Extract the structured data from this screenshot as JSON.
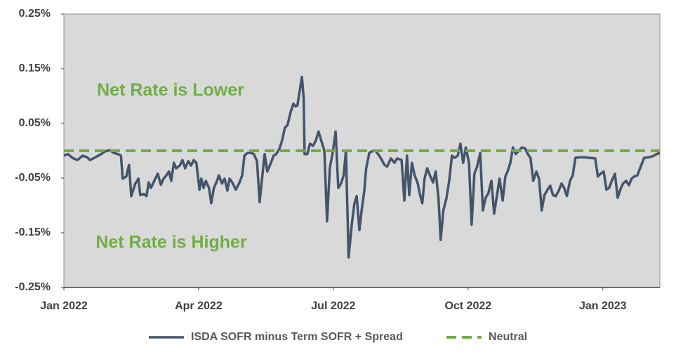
{
  "chart_data": {
    "type": "line",
    "annotations": [
      "Net Rate is Lower",
      "Net Rate is Higher"
    ],
    "xlim": [
      0,
      13.27
    ],
    "xticks": [
      {
        "value": 0,
        "label": "Jan 2022"
      },
      {
        "value": 3,
        "label": "Apr 2022"
      },
      {
        "value": 6,
        "label": "Jul 2022"
      },
      {
        "value": 9,
        "label": "Oct 2022"
      },
      {
        "value": 12,
        "label": "Jan 2023"
      }
    ],
    "ylim": [
      -0.25,
      0.25
    ],
    "yticks": [
      {
        "value": -0.25,
        "label": "-0.25%"
      },
      {
        "value": -0.15,
        "label": "-0.15%"
      },
      {
        "value": -0.05,
        "label": "-0.05%"
      },
      {
        "value": 0.05,
        "label": "0.05%"
      },
      {
        "value": 0.15,
        "label": "0.15%"
      },
      {
        "value": 0.25,
        "label": "0.25%"
      }
    ],
    "plot_background": "#d9d9d9",
    "legend": "bottom",
    "series": [
      {
        "name": "ISDA SOFR minus Term SOFR + Spread",
        "color": "#44546a",
        "style": "solid",
        "x": [
          0,
          0.09,
          0.19,
          0.3,
          0.42,
          0.52,
          0.58,
          0.7,
          0.83,
          0.92,
          1.02,
          1.11,
          1.2,
          1.27,
          1.31,
          1.39,
          1.45,
          1.5,
          1.59,
          1.66,
          1.7,
          1.78,
          1.84,
          1.89,
          1.94,
          2.02,
          2.09,
          2.16,
          2.22,
          2.28,
          2.34,
          2.39,
          2.45,
          2.5,
          2.58,
          2.64,
          2.7,
          2.77,
          2.83,
          2.89,
          2.95,
          3.02,
          3.06,
          3.11,
          3.16,
          3.23,
          3.28,
          3.34,
          3.41,
          3.45,
          3.52,
          3.58,
          3.64,
          3.69,
          3.75,
          3.83,
          3.91,
          3.97,
          4.02,
          4.09,
          4.17,
          4.23,
          4.3,
          4.36,
          4.42,
          4.47,
          4.53,
          4.61,
          4.67,
          4.73,
          4.8,
          4.86,
          4.92,
          4.98,
          5.05,
          5.11,
          5.16,
          5.2,
          5.25,
          5.3,
          5.34,
          5.36,
          5.42,
          5.48,
          5.55,
          5.61,
          5.67,
          5.73,
          5.8,
          5.86,
          5.92,
          5.98,
          6.05,
          6.11,
          6.17,
          6.23,
          6.28,
          6.34,
          6.41,
          6.47,
          6.52,
          6.58,
          6.63,
          6.69,
          6.73,
          6.8,
          6.86,
          6.94,
          7.02,
          7.08,
          7.14,
          7.2,
          7.28,
          7.36,
          7.42,
          7.52,
          7.58,
          7.64,
          7.69,
          7.75,
          7.81,
          7.88,
          7.92,
          7.98,
          8.03,
          8.09,
          8.16,
          8.22,
          8.28,
          8.34,
          8.39,
          8.45,
          8.52,
          8.58,
          8.64,
          8.7,
          8.77,
          8.83,
          8.89,
          8.95,
          9.02,
          9.08,
          9.14,
          9.2,
          9.27,
          9.33,
          9.39,
          9.45,
          9.52,
          9.58,
          9.64,
          9.7,
          9.77,
          9.83,
          9.88,
          9.94,
          10.0,
          10.06,
          10.13,
          10.2,
          10.27,
          10.33,
          10.39,
          10.45,
          10.52,
          10.58,
          10.64,
          10.7,
          10.77,
          10.83,
          10.89,
          10.95,
          11.02,
          11.08,
          11.14,
          11.2,
          11.27,
          11.33,
          11.39,
          11.48,
          11.58,
          11.7,
          11.83,
          11.89,
          11.95,
          12.02,
          12.08,
          12.14,
          12.2,
          12.27,
          12.33,
          12.39,
          12.45,
          12.52,
          12.58,
          12.64,
          12.7,
          12.77,
          12.83,
          12.92,
          13.02,
          13.11,
          13.2,
          13.27
        ],
        "values": [
          -0.009,
          -0.006,
          -0.013,
          -0.017,
          -0.009,
          -0.012,
          -0.017,
          -0.012,
          -0.006,
          -0.001,
          0.001,
          -0.004,
          -0.006,
          -0.009,
          -0.051,
          -0.047,
          -0.026,
          -0.083,
          -0.06,
          -0.051,
          -0.081,
          -0.079,
          -0.083,
          -0.058,
          -0.068,
          -0.054,
          -0.042,
          -0.062,
          -0.051,
          -0.045,
          -0.038,
          -0.055,
          -0.022,
          -0.032,
          -0.027,
          -0.017,
          -0.032,
          -0.019,
          -0.027,
          -0.017,
          -0.022,
          -0.071,
          -0.051,
          -0.068,
          -0.055,
          -0.068,
          -0.096,
          -0.068,
          -0.055,
          -0.045,
          -0.06,
          -0.051,
          -0.073,
          -0.051,
          -0.058,
          -0.071,
          -0.058,
          -0.045,
          -0.009,
          -0.004,
          -0.004,
          -0.006,
          -0.019,
          -0.094,
          -0.045,
          -0.006,
          -0.038,
          -0.022,
          -0.009,
          -0.006,
          0.004,
          0.019,
          0.042,
          0.047,
          0.071,
          0.086,
          0.081,
          0.083,
          0.109,
          0.135,
          0.096,
          -0.006,
          -0.006,
          0.013,
          0.009,
          0.019,
          0.035,
          0.019,
          0.0,
          -0.129,
          -0.032,
          -0.006,
          0.035,
          -0.068,
          -0.06,
          -0.045,
          0.0,
          -0.195,
          -0.135,
          -0.096,
          -0.083,
          -0.145,
          -0.109,
          -0.073,
          -0.032,
          -0.004,
          -0.001,
          0.0,
          -0.009,
          -0.017,
          -0.026,
          -0.029,
          -0.014,
          -0.022,
          -0.014,
          -0.017,
          -0.091,
          -0.009,
          -0.081,
          -0.022,
          -0.045,
          -0.06,
          -0.077,
          -0.096,
          -0.051,
          -0.032,
          -0.047,
          -0.058,
          -0.038,
          -0.086,
          -0.163,
          -0.109,
          -0.086,
          -0.055,
          -0.009,
          -0.013,
          -0.009,
          0.013,
          -0.022,
          0.006,
          -0.022,
          -0.135,
          -0.042,
          -0.029,
          -0.004,
          -0.109,
          -0.086,
          -0.078,
          -0.055,
          -0.115,
          -0.083,
          -0.051,
          -0.091,
          -0.047,
          -0.038,
          -0.022,
          0.006,
          -0.006,
          0.0,
          0.006,
          0.004,
          -0.006,
          -0.013,
          -0.055,
          -0.038,
          -0.051,
          -0.109,
          -0.081,
          -0.071,
          -0.064,
          -0.081,
          -0.083,
          -0.073,
          -0.06,
          -0.068,
          -0.083,
          -0.055,
          -0.045,
          -0.013,
          -0.012,
          -0.012,
          -0.013,
          -0.014,
          -0.047,
          -0.042,
          -0.038,
          -0.071,
          -0.068,
          -0.055,
          -0.042,
          -0.086,
          -0.071,
          -0.06,
          -0.055,
          -0.063,
          -0.051,
          -0.047,
          -0.045,
          -0.032,
          -0.013,
          -0.012,
          -0.01,
          -0.006,
          -0.004
        ]
      },
      {
        "name": "Neutral",
        "color": "#70ad47",
        "style": "dashed",
        "x": [
          0,
          13.27
        ],
        "values": [
          0,
          0
        ]
      }
    ]
  }
}
